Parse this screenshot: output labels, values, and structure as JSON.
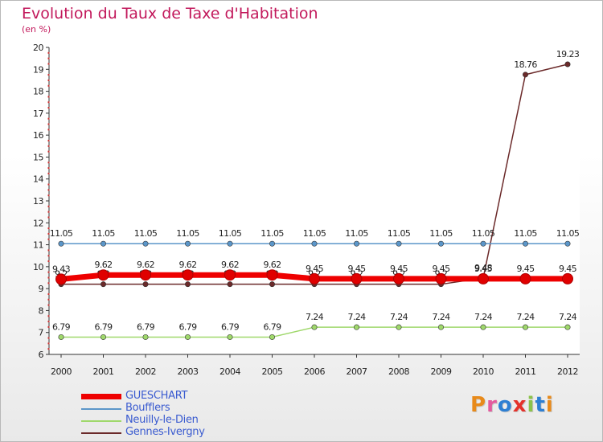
{
  "header": {
    "title": "Evolution du Taux de Taxe d'Habitation",
    "subtitle": "(en %)"
  },
  "logo": {
    "text": "Proxiti",
    "colors": [
      "#e88a1a",
      "#e45a9e",
      "#2d7fd3",
      "#e4322b",
      "#8bc34a",
      "#2d7fd3",
      "#e88a1a"
    ]
  },
  "chart_data": {
    "type": "line",
    "title": "Evolution du Taux de Taxe d'Habitation",
    "subtitle": "(en %)",
    "x": [
      "2000",
      "2001",
      "2002",
      "2003",
      "2004",
      "2005",
      "2006",
      "2007",
      "2008",
      "2009",
      "2010",
      "2011",
      "2012"
    ],
    "ylim": [
      6,
      20
    ],
    "yticks": [
      "6",
      "7",
      "8",
      "9",
      "10",
      "11",
      "12",
      "13",
      "14",
      "15",
      "16",
      "17",
      "18",
      "19",
      "20"
    ],
    "grid": false,
    "legend_position": "bottom-left",
    "series": [
      {
        "name": "Gennes-Ivergny",
        "color": "#6b2a2a",
        "values": [
          9.2,
          9.2,
          9.2,
          9.2,
          9.2,
          9.2,
          9.2,
          9.2,
          9.2,
          9.2,
          9.48,
          18.76,
          19.23
        ],
        "labels": [
          "9.2",
          "9.2",
          "9.2",
          "9.2",
          "9.2",
          "9.2",
          "9.2",
          "9.2",
          "9.2",
          "9.2",
          "9.48",
          "18.76",
          "19.23"
        ]
      },
      {
        "name": "Neuilly-le-Dien",
        "color": "#9fd86b",
        "values": [
          6.79,
          6.79,
          6.79,
          6.79,
          6.79,
          6.79,
          7.24,
          7.24,
          7.24,
          7.24,
          7.24,
          7.24,
          7.24
        ],
        "labels": [
          "6.79",
          "6.79",
          "6.79",
          "6.79",
          "6.79",
          "6.79",
          "7.24",
          "7.24",
          "7.24",
          "7.24",
          "7.24",
          "7.24",
          "7.24"
        ]
      },
      {
        "name": "Boufflers",
        "color": "#5b96c9",
        "values": [
          11.05,
          11.05,
          11.05,
          11.05,
          11.05,
          11.05,
          11.05,
          11.05,
          11.05,
          11.05,
          11.05,
          11.05,
          11.05
        ],
        "labels": [
          "11.05",
          "11.05",
          "11.05",
          "11.05",
          "11.05",
          "11.05",
          "11.05",
          "11.05",
          "11.05",
          "11.05",
          "11.05",
          "11.05",
          "11.05"
        ]
      },
      {
        "name": "GUESCHART",
        "color": "#ee0000",
        "values": [
          9.43,
          9.62,
          9.62,
          9.62,
          9.62,
          9.62,
          9.45,
          9.45,
          9.45,
          9.45,
          9.45,
          9.45,
          9.45
        ],
        "labels": [
          "9.43",
          "9.62",
          "9.62",
          "9.62",
          "9.62",
          "9.62",
          "9.45",
          "9.45",
          "9.45",
          "9.45",
          "9.45",
          "9.45",
          "9.45"
        ]
      }
    ]
  },
  "legend": {
    "items": [
      {
        "label": "GUESCHART",
        "color": "#ee0000",
        "thick": true
      },
      {
        "label": "Boufflers",
        "color": "#5b96c9",
        "thick": false
      },
      {
        "label": "Neuilly-le-Dien",
        "color": "#9fd86b",
        "thick": false
      },
      {
        "label": "Gennes-Ivergny",
        "color": "#6b2a2a",
        "thick": false
      }
    ]
  }
}
